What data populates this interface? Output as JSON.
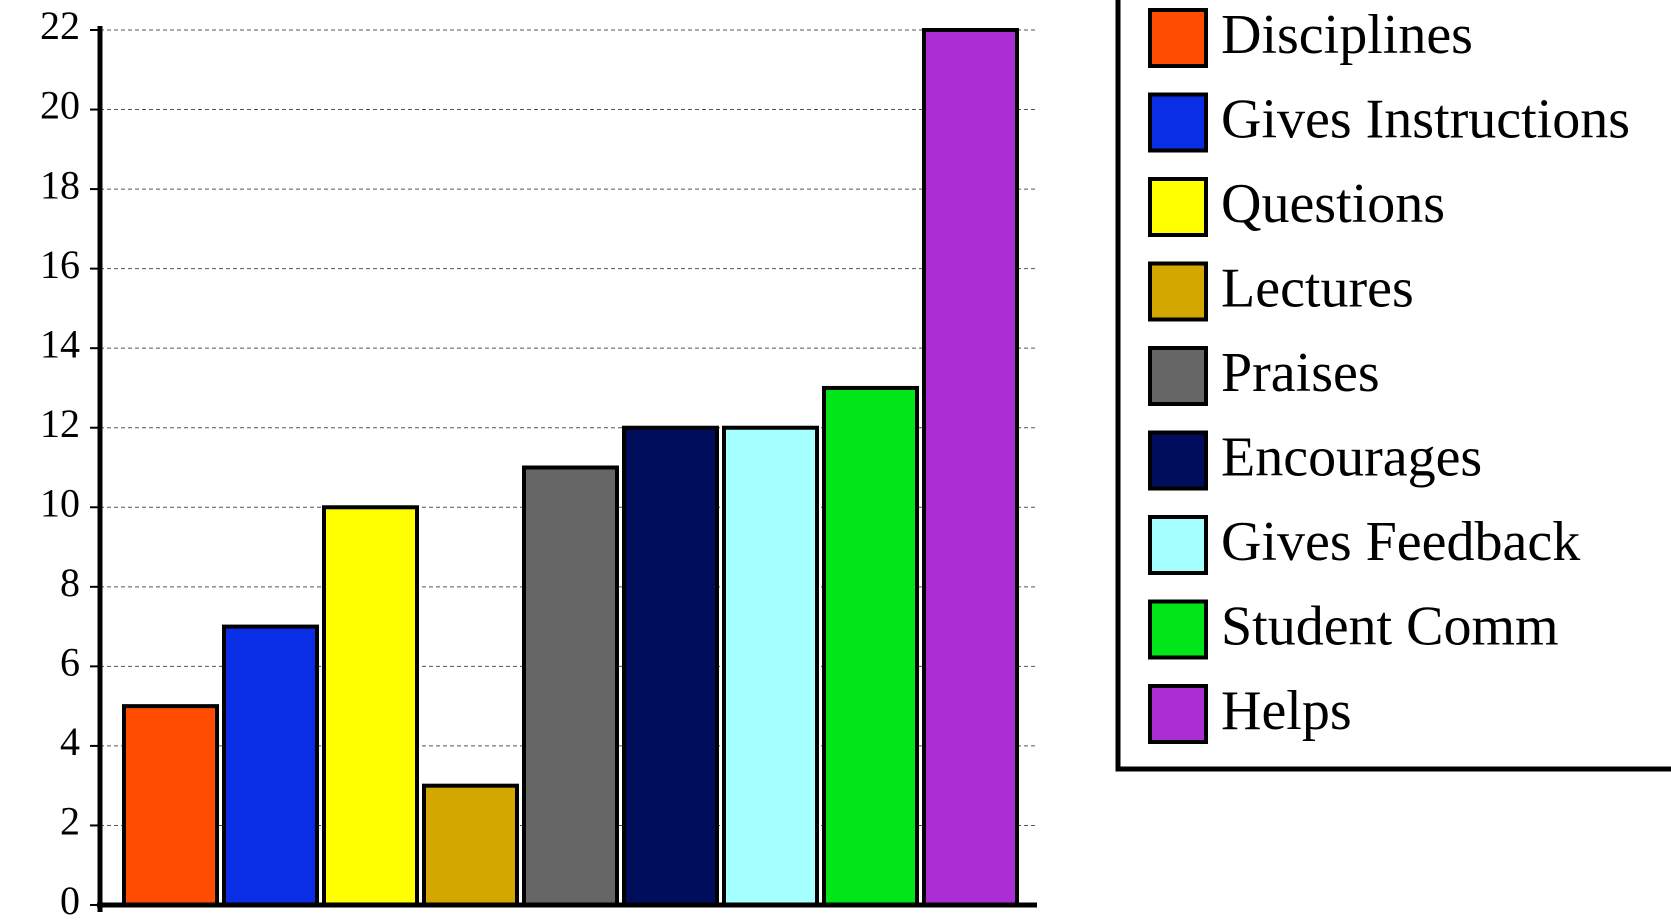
{
  "chart_data": {
    "type": "bar",
    "title": "",
    "xlabel": "",
    "ylabel": "",
    "ylim": [
      0,
      22
    ],
    "yticks": [
      0,
      2,
      4,
      6,
      8,
      10,
      12,
      14,
      16,
      18,
      20,
      22
    ],
    "grid": true,
    "legend_position": "right",
    "categories": [
      "Disciplines",
      "Gives Instructions",
      "Questions",
      "Lectures",
      "Praises",
      "Encourages",
      "Gives Feedback",
      "Student Comm",
      "Helps"
    ],
    "values": [
      5,
      7,
      10,
      3,
      11,
      12,
      12,
      13,
      22
    ],
    "colors": [
      "#ff4c00",
      "#0a2ee6",
      "#ffff00",
      "#d4a600",
      "#666666",
      "#000d5c",
      "#a6ffff",
      "#00e619",
      "#ab2ed4"
    ]
  }
}
